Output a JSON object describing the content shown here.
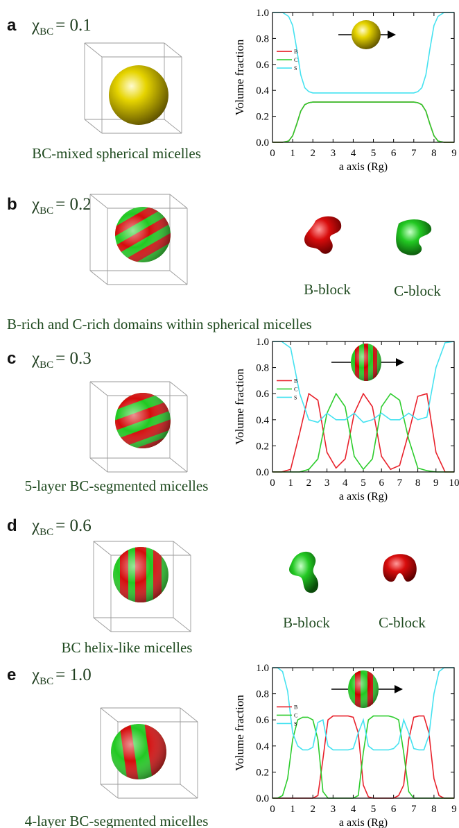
{
  "panels": [
    {
      "letter": "a",
      "chi": {
        "symbol": "χ",
        "subscript": "BC",
        "value": "= 0.1"
      },
      "caption": "BC-mixed spherical micelles"
    },
    {
      "letter": "b",
      "chi": {
        "symbol": "χ",
        "subscript": "BC",
        "value": "= 0.2"
      },
      "block_labels": [
        "B-block",
        "C-block"
      ],
      "caption": "B-rich and C-rich domains within spherical micelles"
    },
    {
      "letter": "c",
      "chi": {
        "symbol": "χ",
        "subscript": "BC",
        "value": "= 0.3"
      },
      "caption": "5-layer BC-segmented micelles"
    },
    {
      "letter": "d",
      "chi": {
        "symbol": "χ",
        "subscript": "BC",
        "value": "= 0.6"
      },
      "block_labels": [
        "B-block",
        "C-block"
      ],
      "caption": "BC helix-like micelles"
    },
    {
      "letter": "e",
      "chi": {
        "symbol": "χ",
        "subscript": "BC",
        "value": "= 1.0"
      },
      "caption": "4-layer BC-segmented micelles"
    }
  ],
  "chart_data": [
    {
      "type": "line",
      "xlabel": "a axis (Rg)",
      "ylabel": "Volume fraction",
      "legend": "left",
      "x": [
        0,
        0.5,
        0.8,
        1,
        1.2,
        1.4,
        1.6,
        1.8,
        2,
        3,
        4,
        5,
        6,
        7,
        7.2,
        7.4,
        7.6,
        7.8,
        8,
        8.2,
        8.5,
        9
      ],
      "series": [
        {
          "name": "B",
          "color": "#e8202a",
          "values": [
            0,
            0,
            0.01,
            0.05,
            0.14,
            0.24,
            0.29,
            0.305,
            0.31,
            0.31,
            0.31,
            0.31,
            0.31,
            0.31,
            0.305,
            0.29,
            0.24,
            0.14,
            0.05,
            0.01,
            0,
            0
          ]
        },
        {
          "name": "C",
          "color": "#2ccc2c",
          "values": [
            0,
            0,
            0.01,
            0.05,
            0.14,
            0.24,
            0.29,
            0.305,
            0.31,
            0.31,
            0.31,
            0.31,
            0.31,
            0.31,
            0.305,
            0.29,
            0.24,
            0.14,
            0.05,
            0.01,
            0,
            0
          ]
        },
        {
          "name": "S",
          "color": "#45e2f0",
          "values": [
            1,
            1,
            0.97,
            0.9,
            0.72,
            0.52,
            0.42,
            0.39,
            0.38,
            0.38,
            0.38,
            0.38,
            0.38,
            0.38,
            0.39,
            0.42,
            0.52,
            0.72,
            0.9,
            0.97,
            1,
            1
          ]
        }
      ],
      "xlim": [
        0,
        9
      ],
      "xticks": [
        0,
        1,
        2,
        3,
        4,
        5,
        6,
        7,
        8,
        9
      ],
      "ylim": [
        0,
        1
      ],
      "yticks": [
        {
          "value": 0,
          "label": "0.0"
        },
        0.2,
        0.4,
        0.6,
        0.8,
        {
          "value": 1,
          "label": "1.0"
        }
      ]
    },
    {
      "type": "line",
      "xlabel": "a axis (Rg)",
      "ylabel": "Volume fraction",
      "legend": "left",
      "x": [
        0,
        0.5,
        1,
        1.5,
        2,
        2.5,
        3,
        3.5,
        4,
        4.5,
        5,
        5.5,
        6,
        6.5,
        7,
        7.5,
        8,
        8.5,
        9,
        9.5,
        10
      ],
      "series": [
        {
          "name": "B",
          "color": "#e8202a",
          "values": [
            0,
            0,
            0.02,
            0.3,
            0.6,
            0.55,
            0.15,
            0.03,
            0.1,
            0.45,
            0.6,
            0.5,
            0.12,
            0.02,
            0.05,
            0.3,
            0.58,
            0.6,
            0.15,
            0,
            0
          ]
        },
        {
          "name": "C",
          "color": "#2ccc2c",
          "values": [
            0,
            0,
            0,
            0,
            0.02,
            0.1,
            0.45,
            0.6,
            0.5,
            0.12,
            0.02,
            0.1,
            0.5,
            0.6,
            0.55,
            0.25,
            0.03,
            0.01,
            0,
            0,
            0
          ]
        },
        {
          "name": "S",
          "color": "#45e2f0",
          "values": [
            1,
            1,
            0.95,
            0.6,
            0.4,
            0.38,
            0.45,
            0.4,
            0.4,
            0.45,
            0.38,
            0.4,
            0.45,
            0.4,
            0.4,
            0.45,
            0.4,
            0.42,
            0.8,
            0.99,
            1
          ]
        }
      ],
      "xlim": [
        0,
        10
      ],
      "xticks": [
        0,
        1,
        2,
        3,
        4,
        5,
        6,
        7,
        8,
        9,
        10
      ],
      "ylim": [
        0,
        1
      ],
      "yticks": [
        {
          "value": 0,
          "label": "0.0"
        },
        0.2,
        0.4,
        0.6,
        0.8,
        {
          "value": 1,
          "label": "1.0"
        }
      ]
    },
    {
      "type": "line",
      "xlabel": "a axis (Rg)",
      "ylabel": "Volume fraction",
      "legend": "left",
      "x": [
        0,
        0.25,
        0.5,
        0.75,
        1,
        1.25,
        1.5,
        1.75,
        2,
        2.25,
        2.5,
        2.75,
        3,
        3.25,
        3.5,
        3.75,
        4,
        4.25,
        4.5,
        4.75,
        5,
        5.25,
        5.5,
        5.75,
        6,
        6.25,
        6.5,
        6.75,
        7,
        7.25,
        7.5,
        7.75,
        8,
        8.25,
        8.5,
        8.75,
        9
      ],
      "series": [
        {
          "name": "B",
          "color": "#e8202a",
          "values": [
            0,
            0,
            0,
            0,
            0,
            0,
            0,
            0,
            0,
            0.02,
            0.3,
            0.6,
            0.63,
            0.63,
            0.63,
            0.63,
            0.62,
            0.5,
            0.1,
            0.01,
            0,
            0,
            0,
            0,
            0,
            0.02,
            0.1,
            0.45,
            0.62,
            0.63,
            0.63,
            0.5,
            0.15,
            0.02,
            0,
            0,
            0
          ]
        },
        {
          "name": "C",
          "color": "#2ccc2c",
          "values": [
            0,
            0,
            0.02,
            0.15,
            0.45,
            0.6,
            0.62,
            0.62,
            0.6,
            0.45,
            0.05,
            0,
            0,
            0,
            0,
            0,
            0,
            0.02,
            0.35,
            0.6,
            0.63,
            0.63,
            0.63,
            0.63,
            0.62,
            0.6,
            0.35,
            0.05,
            0,
            0,
            0,
            0,
            0,
            0,
            0,
            0,
            0
          ]
        },
        {
          "name": "S",
          "color": "#45e2f0",
          "values": [
            1,
            1,
            0.97,
            0.82,
            0.5,
            0.4,
            0.37,
            0.37,
            0.39,
            0.58,
            0.6,
            0.4,
            0.37,
            0.37,
            0.37,
            0.37,
            0.38,
            0.5,
            0.6,
            0.4,
            0.37,
            0.37,
            0.37,
            0.37,
            0.38,
            0.42,
            0.6,
            0.5,
            0.38,
            0.37,
            0.37,
            0.48,
            0.8,
            0.97,
            1,
            1,
            1
          ]
        }
      ],
      "xlim": [
        0,
        9
      ],
      "xticks": [
        0,
        1,
        2,
        3,
        4,
        5,
        6,
        7,
        8,
        9
      ],
      "ylim": [
        0,
        1
      ],
      "yticks": [
        {
          "value": 0,
          "label": "0.0"
        },
        0.2,
        0.4,
        0.6,
        0.8,
        {
          "value": 1,
          "label": "1.0"
        }
      ]
    }
  ]
}
